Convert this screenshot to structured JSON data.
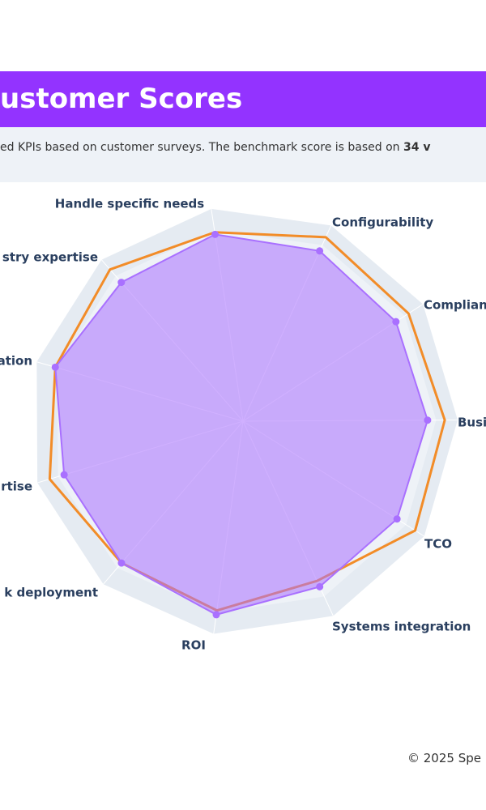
{
  "header": {
    "title": "ustomer Scores",
    "subtitle": "ed KPIs based on customer surveys. The benchmark score is based on ",
    "subtitle_bold": "34 v"
  },
  "chart_data": {
    "type": "radar",
    "categories": [
      "Handle specific needs",
      "Configurability",
      "Complian",
      "Busi",
      "TCO",
      "Systems integration",
      "ROI",
      "k deployment",
      "rtise",
      "ation",
      "stry expertise"
    ],
    "rlim": [
      0,
      100
    ],
    "series": [
      {
        "color": "#f28c28",
        "values": [
          89,
          94,
          92,
          94,
          95,
          82,
          89,
          87,
          94,
          91,
          94
        ]
      },
      {
        "color": "#a970ff",
        "values": [
          88,
          87,
          85,
          86,
          85,
          85,
          91,
          87,
          87,
          91,
          86
        ]
      }
    ]
  },
  "footer": {
    "text": "© 2025 Spe"
  }
}
